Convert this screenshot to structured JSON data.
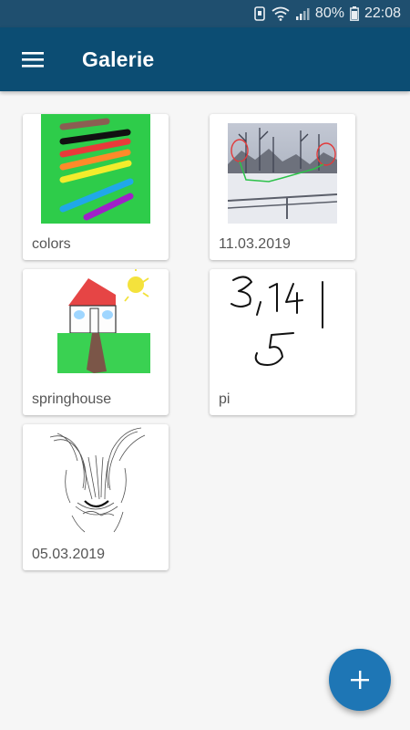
{
  "status_bar": {
    "battery": "80%",
    "time": "22:08",
    "icons": [
      "notification-icon",
      "wifi-icon",
      "signal-icon",
      "battery-icon"
    ]
  },
  "app_bar": {
    "title": "Galerie",
    "menu_icon": "hamburger-menu-icon"
  },
  "gallery": {
    "items": [
      {
        "caption": "colors"
      },
      {
        "caption": "11.03.2019"
      },
      {
        "caption": "springhouse"
      },
      {
        "caption": "pi"
      },
      {
        "caption": "05.03.2019"
      }
    ]
  },
  "fab": {
    "icon": "plus-icon"
  },
  "colors": {
    "status_bar": "#1f4f6f",
    "app_bar": "#0c4d73",
    "fab": "#1e76b5",
    "background": "#f6f6f6"
  }
}
